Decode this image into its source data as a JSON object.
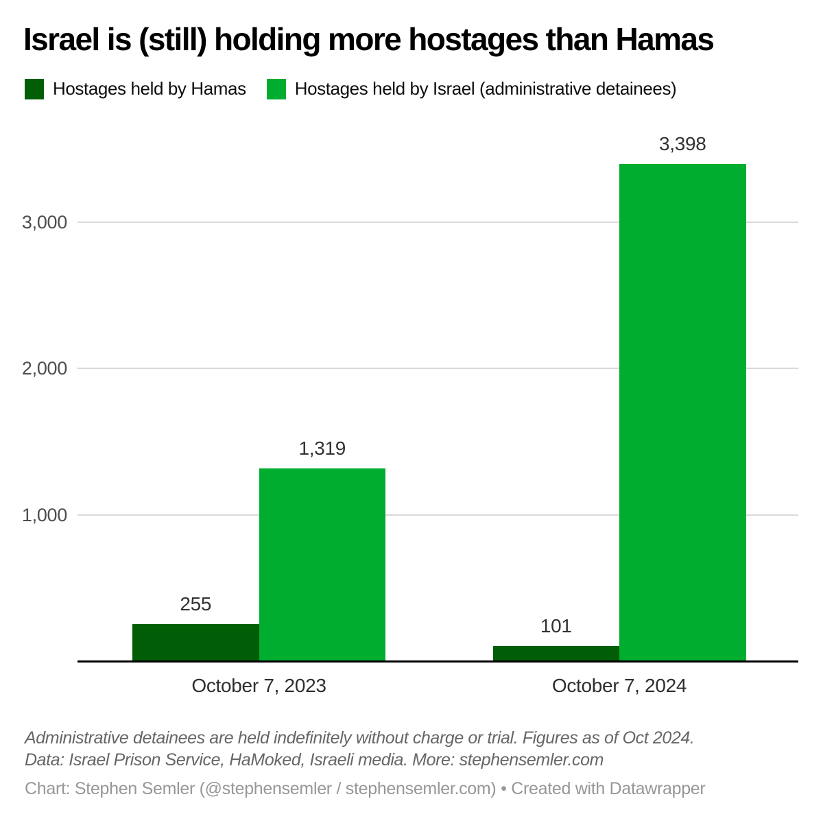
{
  "title": "Israel is (still) holding more hostages than Hamas",
  "legend": {
    "items": [
      {
        "key": "hamas",
        "label": "Hostages held by Hamas",
        "color": "#015e06"
      },
      {
        "key": "israel",
        "label": "Hostages held by Israel (administrative detainees)",
        "color": "#00ad2f"
      }
    ]
  },
  "chart_data": {
    "type": "bar",
    "categories": [
      "October 7, 2023",
      "October 7, 2024"
    ],
    "series": [
      {
        "key": "hamas",
        "name": "Hostages held by Hamas",
        "color": "#015e06",
        "values": [
          255,
          101
        ],
        "values_formatted": [
          "255",
          "101"
        ]
      },
      {
        "key": "israel",
        "name": "Hostages held by Israel (administrative detainees)",
        "color": "#00ad2f",
        "values": [
          1319,
          3398
        ],
        "values_formatted": [
          "1,319",
          "3,398"
        ]
      }
    ],
    "yticks": [
      {
        "value": 1000,
        "label": "1,000"
      },
      {
        "value": 2000,
        "label": "2,000"
      },
      {
        "value": 3000,
        "label": "3,000"
      }
    ],
    "ylim": [
      0,
      3450
    ],
    "grid": "horizontal-only",
    "legend_position": "top-left",
    "value_labels_shown": true
  },
  "footnote": {
    "line1": "Administrative detainees are held indefinitely without charge or trial. Figures as of Oct 2024.",
    "line2": "Data: Israel Prison Service, HaMoked, Israeli media. More: stephensemler.com"
  },
  "attribution": "Chart: Stephen Semler (@stephensemler / stephensemler.com) • Created with Datawrapper"
}
